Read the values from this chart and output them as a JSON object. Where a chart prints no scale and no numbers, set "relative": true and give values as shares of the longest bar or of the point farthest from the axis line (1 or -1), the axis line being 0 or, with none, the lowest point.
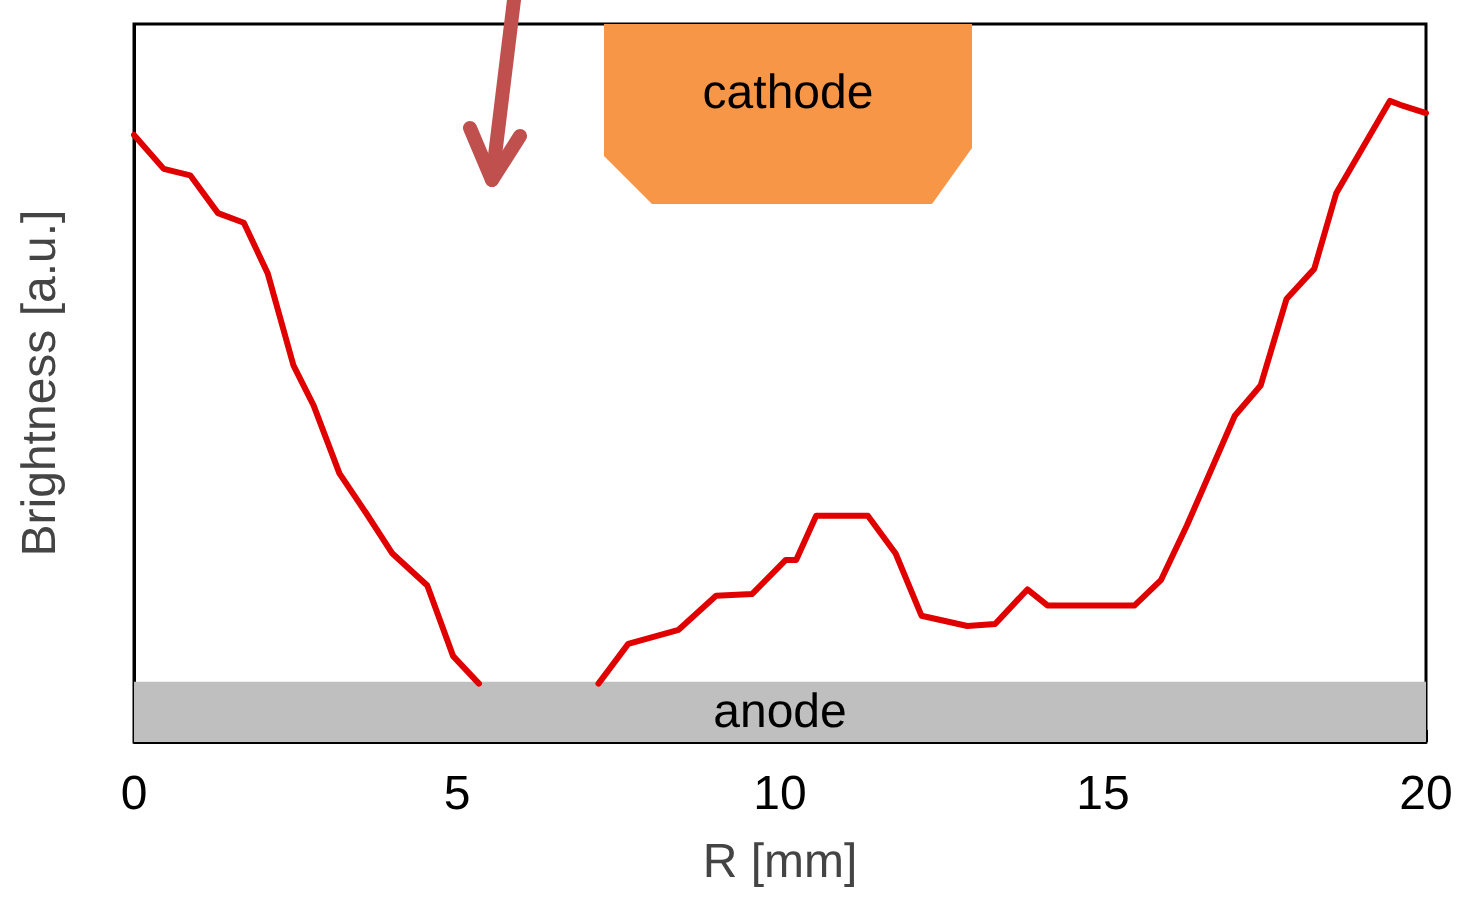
{
  "chart_data": {
    "type": "line",
    "relative": true,
    "xlabel": "R [mm]",
    "ylabel": "Brightness [a.u.]",
    "xlim": [
      0,
      20
    ],
    "xticks": [
      0,
      5,
      10,
      15,
      20
    ],
    "grid": false,
    "marker": "none",
    "line_style": "solid",
    "annotations": [
      "cathode"
    ],
    "bands": [
      {
        "axis": "y",
        "from": 0,
        "to": 0.094,
        "label": "anode",
        "color": "#bfbfbf"
      }
    ],
    "series": [
      {
        "color": "#e00000",
        "x": [
          0,
          0.46,
          0.87,
          1.3,
          1.7,
          2.07,
          2.47,
          2.78,
          3.18,
          3.6,
          4.0,
          4.54,
          4.94,
          5.34,
          5.5,
          7.1,
          7.19,
          7.65,
          8.43,
          9.01,
          9.57,
          10.09,
          10.25,
          10.56,
          11.36,
          11.79,
          12.19,
          12.9,
          13.33,
          13.83,
          14.14,
          15.49,
          15.9,
          16.3,
          17.04,
          17.44,
          17.84,
          18.27,
          18.61,
          19.44,
          19.6,
          20
        ],
        "values": [
          0.947,
          0.894,
          0.884,
          0.825,
          0.81,
          0.731,
          0.587,
          0.525,
          0.419,
          0.356,
          0.294,
          0.244,
          0.134,
          0.091,
          null,
          null,
          0.091,
          0.153,
          0.175,
          0.228,
          0.231,
          0.284,
          0.284,
          0.353,
          0.353,
          0.294,
          0.197,
          0.181,
          0.184,
          0.238,
          0.213,
          0.213,
          0.253,
          0.338,
          0.509,
          0.556,
          0.691,
          0.738,
          0.856,
          1,
          0.994,
          0.981
        ]
      }
    ]
  }
}
